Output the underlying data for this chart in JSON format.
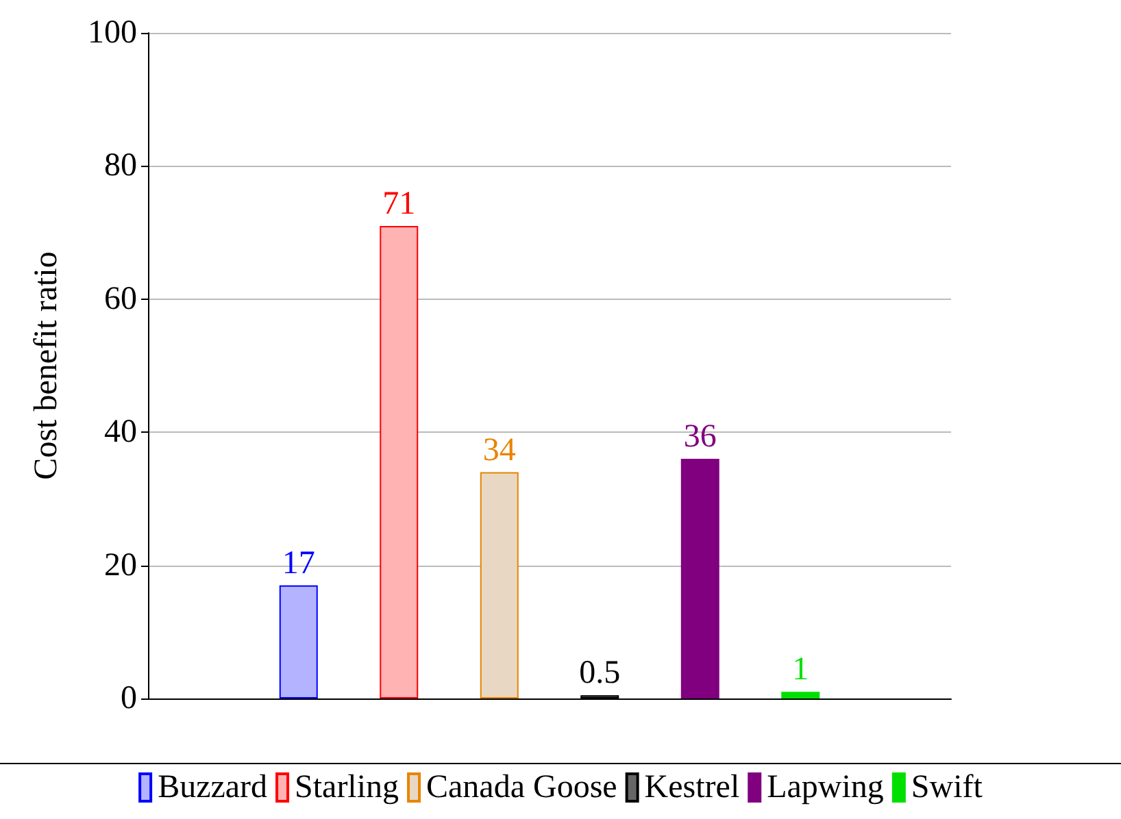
{
  "chart_data": {
    "type": "bar",
    "ylabel": "Cost benefit ratio",
    "categories": [
      null,
      null,
      null,
      null,
      null,
      null,
      null,
      null
    ],
    "series": [
      {
        "name": "Buzzard",
        "color": "#b3b3ff",
        "values": [
          null,
          17,
          null,
          null,
          null,
          null,
          null,
          null
        ]
      },
      {
        "name": "Starling",
        "color": "#ffb3b3",
        "values": [
          null,
          null,
          71,
          null,
          null,
          null,
          null,
          null
        ]
      },
      {
        "name": "Canada Goose",
        "color": "#e8d8c3",
        "values": [
          null,
          null,
          null,
          34,
          null,
          null,
          null,
          null
        ]
      },
      {
        "name": "Kestrel",
        "color": "#666666",
        "values": [
          null,
          null,
          null,
          null,
          0.5,
          null,
          null,
          null
        ]
      },
      {
        "name": "Lapwing",
        "color": "#800080",
        "values": [
          null,
          null,
          null,
          null,
          null,
          36,
          null,
          null
        ]
      },
      {
        "name": "Swift",
        "color": "#00e000",
        "values": [
          null,
          null,
          null,
          null,
          null,
          null,
          1,
          null
        ]
      }
    ],
    "ylim": [
      0,
      100
    ],
    "yticks": [
      0,
      20,
      40,
      60,
      80,
      100
    ],
    "grid": "y",
    "legend": "bottom",
    "data_labels": true
  }
}
